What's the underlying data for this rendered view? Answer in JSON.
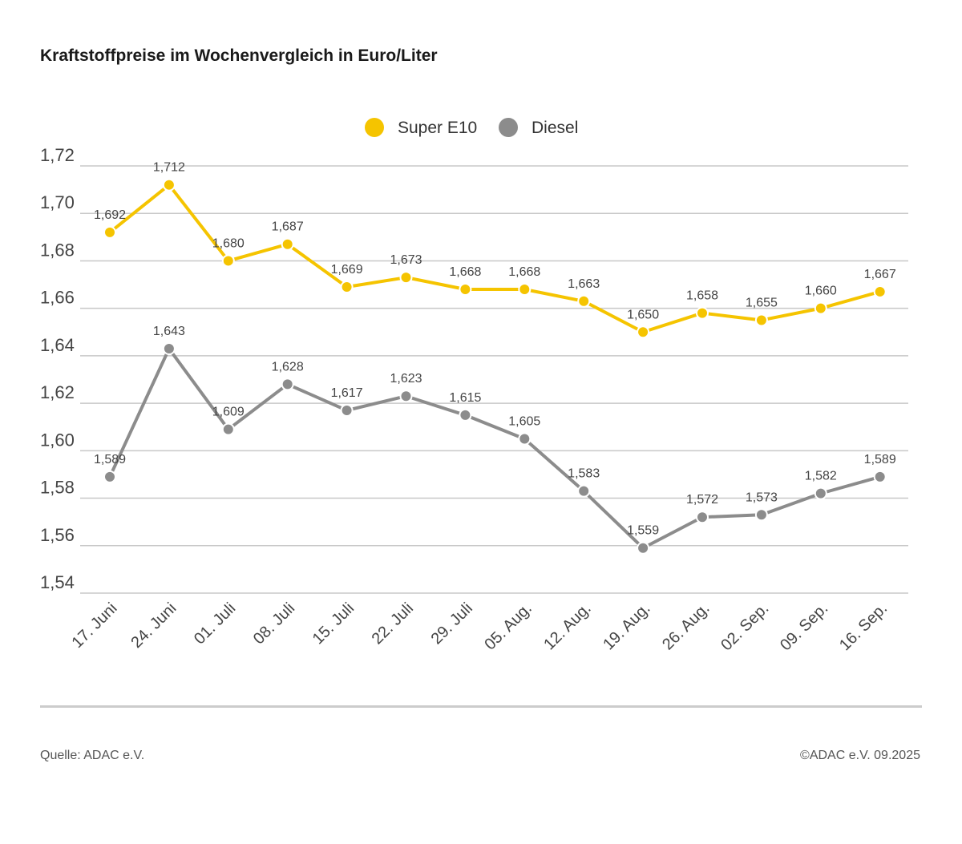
{
  "title": "Kraftstoffpreise im Wochenvergleich in Euro/Liter",
  "footer": {
    "source": "Quelle: ADAC e.V.",
    "copyright": "©ADAC e.V. 09.2025"
  },
  "chart_data": {
    "type": "line",
    "title": "Kraftstoffpreise im Wochenvergleich in Euro/Liter",
    "xlabel": "",
    "ylabel": "",
    "ylim": [
      1.54,
      1.72
    ],
    "yticks": [
      1.54,
      1.56,
      1.58,
      1.6,
      1.62,
      1.64,
      1.66,
      1.68,
      1.7,
      1.72
    ],
    "ytick_labels": [
      "1,54",
      "1,56",
      "1,58",
      "1,60",
      "1,62",
      "1,64",
      "1,66",
      "1,68",
      "1,70",
      "1,72"
    ],
    "grid": true,
    "legend": "top-center",
    "categories": [
      "17. Juni",
      "24. Juni",
      "01. Juli",
      "08. Juli",
      "15. Juli",
      "22. Juli",
      "29. Juli",
      "05. Aug.",
      "12. Aug.",
      "19. Aug.",
      "26. Aug.",
      "02. Sep.",
      "09. Sep.",
      "16. Sep."
    ],
    "series": [
      {
        "name": "Super E10",
        "color": "#f5c400",
        "values": [
          1.692,
          1.712,
          1.68,
          1.687,
          1.669,
          1.673,
          1.668,
          1.668,
          1.663,
          1.65,
          1.658,
          1.655,
          1.66,
          1.667
        ],
        "labels": [
          "1,692",
          "1,712",
          "1,680",
          "1,687",
          "1,669",
          "1,673",
          "1,668",
          "1,668",
          "1,663",
          "1,650",
          "1,658",
          "1,655",
          "1,660",
          "1,667"
        ]
      },
      {
        "name": "Diesel",
        "color": "#8c8c8c",
        "values": [
          1.589,
          1.643,
          1.609,
          1.628,
          1.617,
          1.623,
          1.615,
          1.605,
          1.583,
          1.559,
          1.572,
          1.573,
          1.582,
          1.589
        ],
        "labels": [
          "1,589",
          "1,643",
          "1,609",
          "1,628",
          "1,617",
          "1,623",
          "1,615",
          "1,605",
          "1,583",
          "1,559",
          "1,572",
          "1,573",
          "1,582",
          "1,589"
        ]
      }
    ]
  }
}
